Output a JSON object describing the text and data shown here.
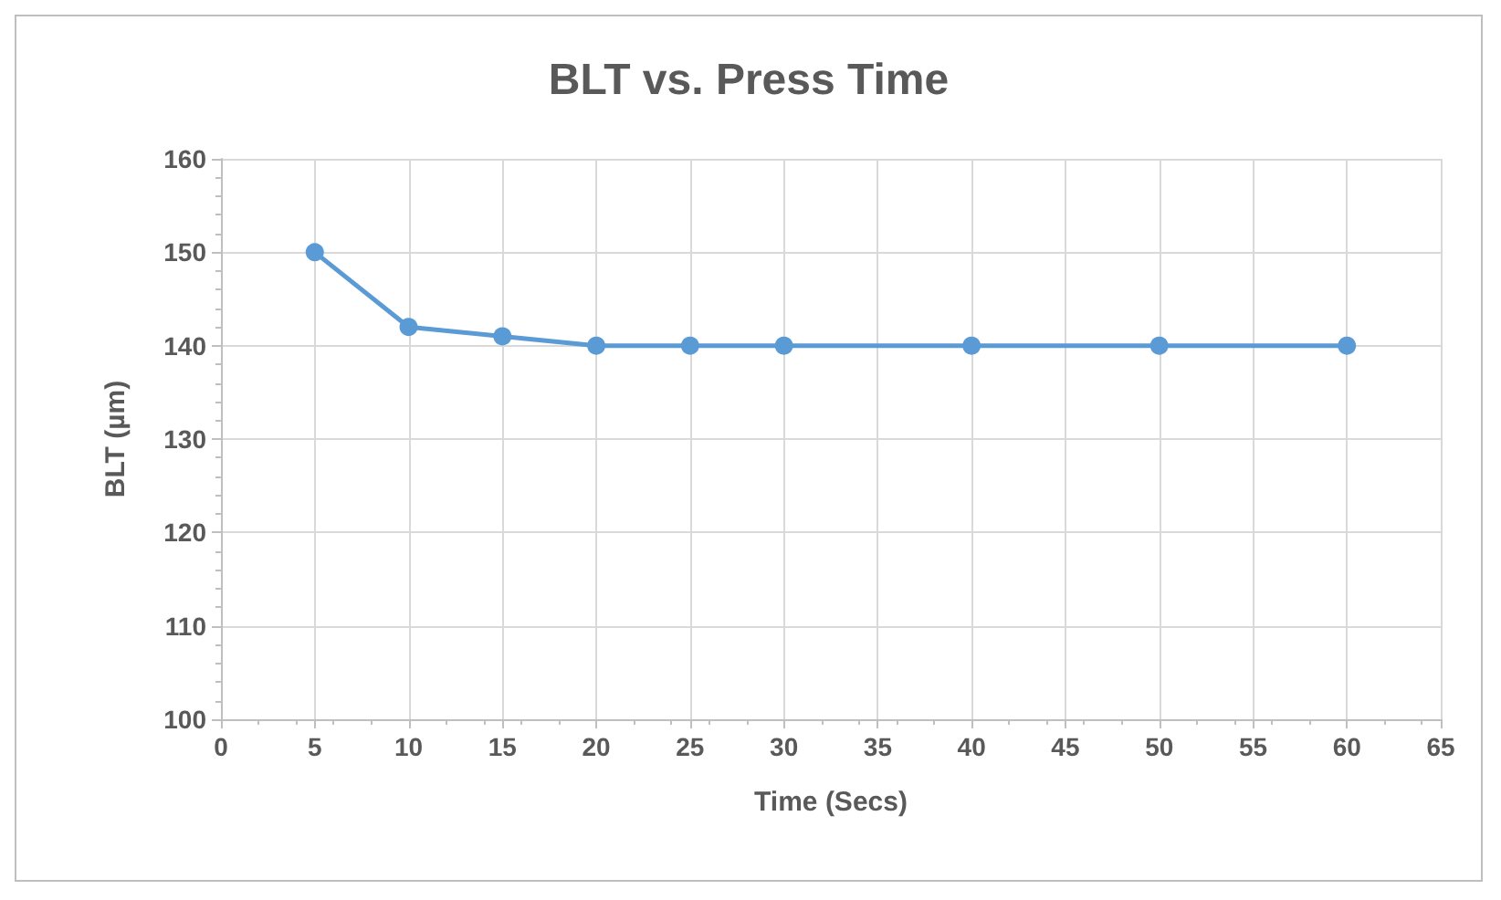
{
  "chart_data": {
    "type": "line",
    "title": "BLT vs. Press Time",
    "xlabel": "Time (Secs)",
    "ylabel": "BLT (µm)",
    "x": [
      5,
      10,
      15,
      20,
      25,
      30,
      40,
      50,
      60
    ],
    "series": [
      {
        "color": "#5b9bd5",
        "values": [
          150,
          142,
          141,
          140,
          140,
          140,
          140,
          140,
          140
        ]
      }
    ],
    "xlim": [
      0,
      65
    ],
    "xticks": [
      0,
      5,
      10,
      15,
      20,
      25,
      30,
      35,
      40,
      45,
      50,
      55,
      60,
      65
    ],
    "ylim": [
      100,
      160
    ],
    "yticks": [
      100,
      110,
      120,
      130,
      140,
      150,
      160
    ],
    "grid": true,
    "marker": "circle",
    "line_style": "solid"
  }
}
